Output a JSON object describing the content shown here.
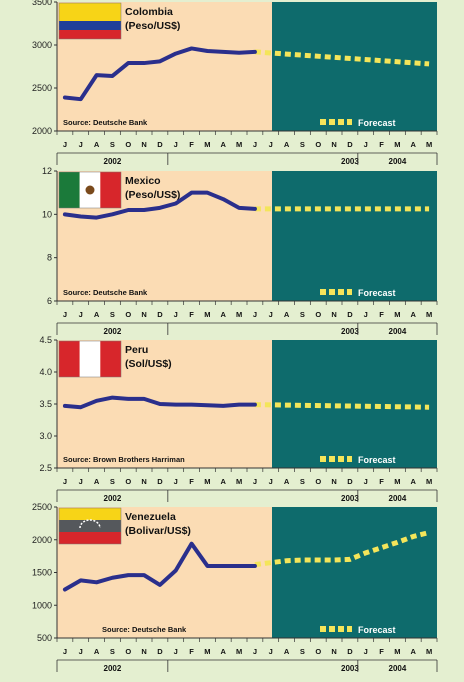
{
  "colors": {
    "page_bg": "#e4efd0",
    "history_bg": "#fbdcb4",
    "forecast_bg": "#0e6b6c",
    "series_line": "#2a2f8c",
    "forecast_dash": "#f4e55a",
    "axis": "#333333"
  },
  "months": [
    "J",
    "J",
    "A",
    "S",
    "O",
    "N",
    "D",
    "J",
    "F",
    "M",
    "A",
    "M",
    "J",
    "J",
    "A",
    "S",
    "O",
    "N",
    "D",
    "J",
    "F",
    "M",
    "A",
    "M"
  ],
  "years": [
    "2002",
    "2003",
    "2004"
  ],
  "legend_forecast": "Forecast",
  "chart_data": [
    {
      "type": "line",
      "title_line1": "Colombia",
      "title_line2": "(Peso/US$)",
      "source": "Source: Deutsche Bank",
      "flag": "colombia",
      "ylim": [
        2000,
        3500
      ],
      "yticks": [
        "2000",
        "2500",
        "3000",
        "3500"
      ],
      "ytick_values": [
        2000,
        2500,
        3000,
        3500
      ],
      "actual_idx": [
        0,
        1,
        2,
        3,
        4,
        5,
        6,
        7,
        8,
        9,
        10,
        11,
        12
      ],
      "actual": [
        2390,
        2370,
        2650,
        2640,
        2790,
        2790,
        2810,
        2900,
        2960,
        2930,
        2920,
        2910,
        2920
      ],
      "forecast_idx": [
        12,
        23
      ],
      "forecast": [
        2920,
        2780
      ]
    },
    {
      "type": "line",
      "title_line1": "Mexico",
      "title_line2": "(Peso/US$)",
      "source": "Source: Deutsche Bank",
      "flag": "mexico",
      "ylim": [
        6,
        12
      ],
      "yticks": [
        "6",
        "8",
        "10",
        "12"
      ],
      "ytick_values": [
        6,
        8,
        10,
        12
      ],
      "actual_idx": [
        0,
        1,
        2,
        3,
        4,
        5,
        6,
        7,
        8,
        9,
        10,
        11,
        12
      ],
      "actual": [
        10.0,
        9.9,
        9.85,
        10.0,
        10.2,
        10.2,
        10.3,
        10.5,
        11.0,
        11.0,
        10.7,
        10.3,
        10.25
      ],
      "forecast_idx": [
        12,
        23
      ],
      "forecast": [
        10.25,
        10.25
      ]
    },
    {
      "type": "line",
      "title_line1": "Peru",
      "title_line2": "(Sol/US$)",
      "source": "Source: Brown Brothers Harriman",
      "flag": "peru",
      "ylim": [
        2.5,
        4.5
      ],
      "yticks": [
        "2.5",
        "3.0",
        "3.5",
        "4.0",
        "4.5"
      ],
      "ytick_values": [
        2.5,
        3.0,
        3.5,
        4.0,
        4.5
      ],
      "actual_idx": [
        0,
        1,
        2,
        3,
        4,
        5,
        6,
        7,
        8,
        9,
        10,
        11,
        12
      ],
      "actual": [
        3.47,
        3.45,
        3.55,
        3.6,
        3.58,
        3.58,
        3.5,
        3.49,
        3.49,
        3.48,
        3.47,
        3.49,
        3.49
      ],
      "forecast_idx": [
        12,
        23
      ],
      "forecast": [
        3.49,
        3.45
      ]
    },
    {
      "type": "line",
      "title_line1": "Venezuela",
      "title_line2": "(Bolivar/US$)",
      "source": "Source: Deutsche Bank",
      "flag": "venezuela",
      "ylim": [
        500,
        2500
      ],
      "yticks": [
        "500",
        "1000",
        "1500",
        "2000",
        "2500"
      ],
      "ytick_values": [
        500,
        1000,
        1500,
        2000,
        2500
      ],
      "actual_idx": [
        0,
        1,
        2,
        3,
        4,
        5,
        6,
        7,
        8,
        9,
        10,
        11,
        12
      ],
      "actual": [
        1240,
        1380,
        1350,
        1420,
        1460,
        1460,
        1310,
        1530,
        1940,
        1600,
        1600,
        1600,
        1600
      ],
      "forecast_idx": [
        12,
        13,
        14,
        15,
        16,
        17,
        18,
        19,
        20,
        21,
        22,
        23
      ],
      "forecast": [
        1620,
        1650,
        1680,
        1690,
        1690,
        1690,
        1700,
        1800,
        1880,
        1960,
        2050,
        2110
      ]
    }
  ]
}
